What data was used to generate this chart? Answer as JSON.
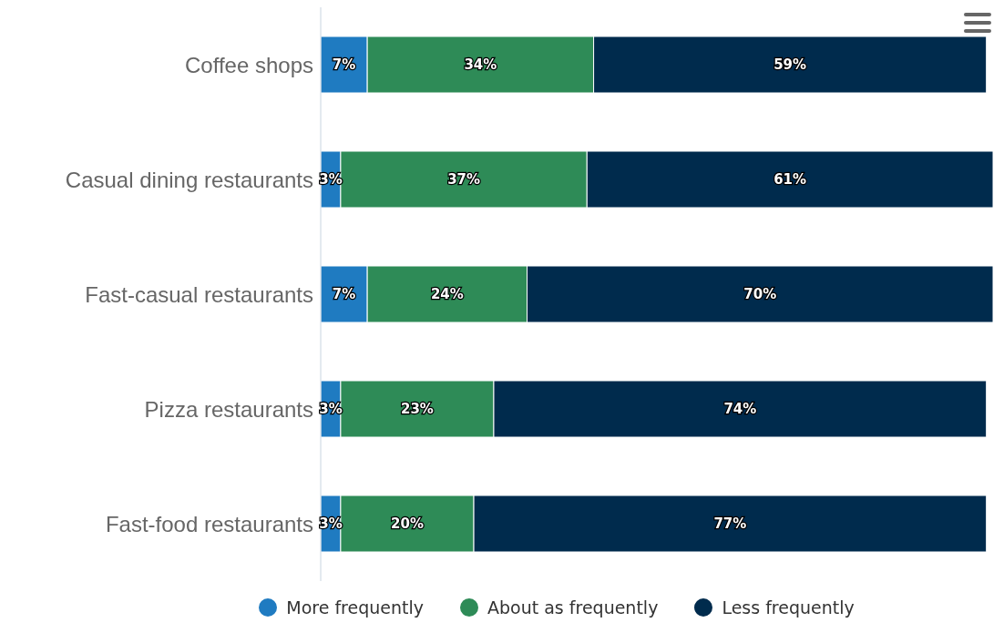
{
  "chart_data": {
    "type": "bar",
    "orientation": "horizontal",
    "stacked": true,
    "legend": "bottom",
    "grid": false,
    "categories": [
      "Coffee shops",
      "Casual dining restaurants",
      "Fast-casual restaurants",
      "Pizza restaurants",
      "Fast-food restaurants"
    ],
    "series": [
      {
        "name": "More frequently",
        "color": "#1f7bc1",
        "values": [
          7,
          3,
          7,
          3,
          3
        ],
        "value_labels": [
          "7%",
          "3%",
          "7%",
          "3%",
          "3%"
        ]
      },
      {
        "name": "About as frequently",
        "color": "#2e8b57",
        "values": [
          34,
          37,
          24,
          23,
          20
        ],
        "value_labels": [
          "34%",
          "37%",
          "24%",
          "23%",
          "20%"
        ]
      },
      {
        "name": "Less frequently",
        "color": "#002b4d",
        "values": [
          59,
          61,
          70,
          74,
          77
        ],
        "value_labels": [
          "59%",
          "61%",
          "70%",
          "74%",
          "77%"
        ]
      }
    ]
  }
}
